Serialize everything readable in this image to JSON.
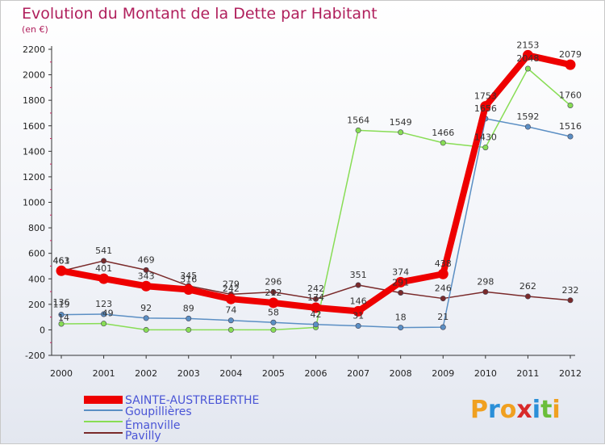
{
  "chart_data": {
    "type": "line",
    "title": "Evolution du Montant de la Dette par Habitant",
    "subtitle": "(en €)",
    "xlabel": "",
    "ylabel": "",
    "x": [
      "2000",
      "2001",
      "2002",
      "2003",
      "2004",
      "2005",
      "2006",
      "2007",
      "2008",
      "2009",
      "2010",
      "2011",
      "2012"
    ],
    "ylim": [
      -200,
      2200
    ],
    "yticks": [
      -200,
      0,
      200,
      400,
      600,
      800,
      1000,
      1200,
      1400,
      1600,
      1800,
      2000,
      2200
    ],
    "grid": false,
    "legend_position": "bottom-left",
    "series": [
      {
        "name": "SAINTE-AUSTREBERTHE",
        "color": "#ee0000",
        "values": [
          463,
          401,
          343,
          316,
          242,
          212,
          174,
          146,
          374,
          438,
          1753,
          2153,
          2079
        ]
      },
      {
        "name": "Goupillières",
        "color": "#5b8fc4",
        "values": [
          119,
          123,
          92,
          89,
          74,
          58,
          42,
          31,
          18,
          21,
          1656,
          1592,
          1516
        ]
      },
      {
        "name": "Émanville",
        "color": "#88dd55",
        "values": [
          47,
          49,
          0,
          0,
          0,
          0,
          19,
          1564,
          1549,
          1466,
          1430,
          2048,
          1760
        ]
      },
      {
        "name": "Pavilly",
        "color": "#7a2a2a",
        "values": [
          461,
          541,
          469,
          345,
          279,
          296,
          242,
          351,
          291,
          246,
          298,
          262,
          232
        ]
      }
    ],
    "data_labels": {
      "SAINTE-AUSTREBERTHE": [
        "463",
        "401",
        "343",
        "316",
        "242",
        "212",
        "174",
        "146",
        "374",
        "438",
        "1753",
        "2153",
        "2079"
      ],
      "Goupillières": [
        "119",
        "123",
        "92",
        "89",
        "74",
        "58",
        "42",
        "31",
        "18",
        "21",
        "1656",
        "1592",
        "1516"
      ],
      "Émanville": [
        "",
        "",
        "",
        "",
        "",
        "",
        "",
        "1564",
        "1549",
        "1466",
        "1430",
        "2048",
        "1760"
      ],
      "Pavilly": [
        "461",
        "541",
        "469",
        "345",
        "279",
        "296",
        "242",
        "351",
        "291",
        "246",
        "298",
        "262",
        "232"
      ]
    },
    "extra_labels": [
      "136",
      "49",
      "14"
    ]
  },
  "logo": {
    "text": "Proxiti",
    "letters": [
      "P",
      "r",
      "o",
      "x",
      "i",
      "t",
      "i"
    ],
    "colors": [
      "#f0a020",
      "#2a8fd8",
      "#f0a020",
      "#d82a2a",
      "#2a8fd8",
      "#6abe3a",
      "#f0a020"
    ]
  }
}
